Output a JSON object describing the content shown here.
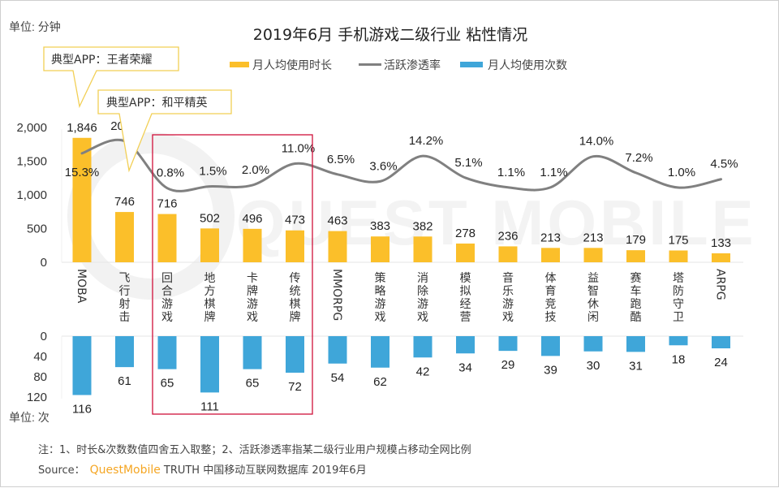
{
  "title": "2019年6月 手机游戏二级行业 粘性情况",
  "unit_top": "单位: 分钟",
  "unit_bottom": "单位: 次",
  "watermark": "QUEST MOBILE",
  "callouts": [
    {
      "text": "典型APP：王者荣耀",
      "target": "MOBA"
    },
    {
      "text": "典型APP：和平精英",
      "target": "飞行射击"
    }
  ],
  "legend": [
    {
      "label": "月人均使用时长",
      "color": "#FBBF2A",
      "kind": "bar"
    },
    {
      "label": "活跃渗透率",
      "color": "#808080",
      "kind": "line"
    },
    {
      "label": "月人均使用次数",
      "color": "#3FA6D9",
      "kind": "bar"
    }
  ],
  "footer": {
    "note": "注：1、时长&次数数值四舍五入取整；2、活跃渗透率指某二级行业用户规模占移动全网比例",
    "source_prefix": "Source：",
    "source_brand": "QuestMobile",
    "source_rest": "TRUTH 中国移动互联网数据库 2019年6月"
  },
  "chart_data": {
    "type": "bar",
    "title": "2019年6月 手机游戏二级行业 粘性情况",
    "categories": [
      "MOBA",
      "飞行射击",
      "回合游戏",
      "地方棋牌",
      "卡牌游戏",
      "传统棋牌",
      "MMORPG",
      "策略游戏",
      "消除游戏",
      "模拟经营",
      "音乐游戏",
      "体育竞技",
      "益智休闲",
      "赛车跑酷",
      "塔防守卫",
      "ARPG"
    ],
    "highlight": {
      "categories": [
        "回合游戏",
        "地方棋牌",
        "卡牌游戏",
        "传统棋牌"
      ],
      "color": "#D0103A"
    },
    "series": [
      {
        "name": "月人均使用时长",
        "type": "bar",
        "unit": "分钟",
        "color": "#FBBF2A",
        "values": [
          1846,
          746,
          716,
          502,
          496,
          473,
          463,
          383,
          382,
          278,
          236,
          213,
          213,
          179,
          175,
          133
        ],
        "labels": [
          "1,846",
          "746",
          "716",
          "502",
          "496",
          "473",
          "463",
          "383",
          "382",
          "278",
          "236",
          "213",
          "213",
          "179",
          "175",
          "133"
        ]
      },
      {
        "name": "活跃渗透率",
        "type": "line",
        "unit": "%",
        "color": "#808080",
        "values": [
          15.3,
          20.4,
          0.8,
          1.5,
          2.0,
          11.0,
          6.5,
          3.6,
          14.2,
          5.1,
          1.1,
          1.1,
          14.0,
          7.2,
          1.0,
          4.5
        ],
        "labels": [
          "15.3%",
          "20.4%",
          "0.8%",
          "1.5%",
          "2.0%",
          "11.0%",
          "6.5%",
          "3.6%",
          "14.2%",
          "5.1%",
          "1.1%",
          "1.1%",
          "14.0%",
          "7.2%",
          "1.0%",
          "4.5%"
        ]
      },
      {
        "name": "月人均使用次数",
        "type": "bar",
        "unit": "次",
        "color": "#3FA6D9",
        "direction": "down",
        "values": [
          116,
          61,
          65,
          111,
          65,
          72,
          54,
          62,
          42,
          34,
          29,
          39,
          30,
          31,
          18,
          24
        ]
      }
    ],
    "y_top": {
      "label": "单位: 分钟",
      "ylim": [
        0,
        2000
      ],
      "ticks": [
        0,
        500,
        1000,
        1500,
        2000
      ],
      "tick_labels": [
        "0",
        "500",
        "1,000",
        "1,500",
        "2,000"
      ]
    },
    "y_bottom": {
      "label": "单位: 次",
      "ylim": [
        0,
        120
      ],
      "ticks": [
        0,
        40,
        80,
        120
      ],
      "tick_labels": [
        "0",
        "40",
        "80",
        "120"
      ],
      "inverted": true
    },
    "legend_position": "top-center",
    "grid": false
  }
}
